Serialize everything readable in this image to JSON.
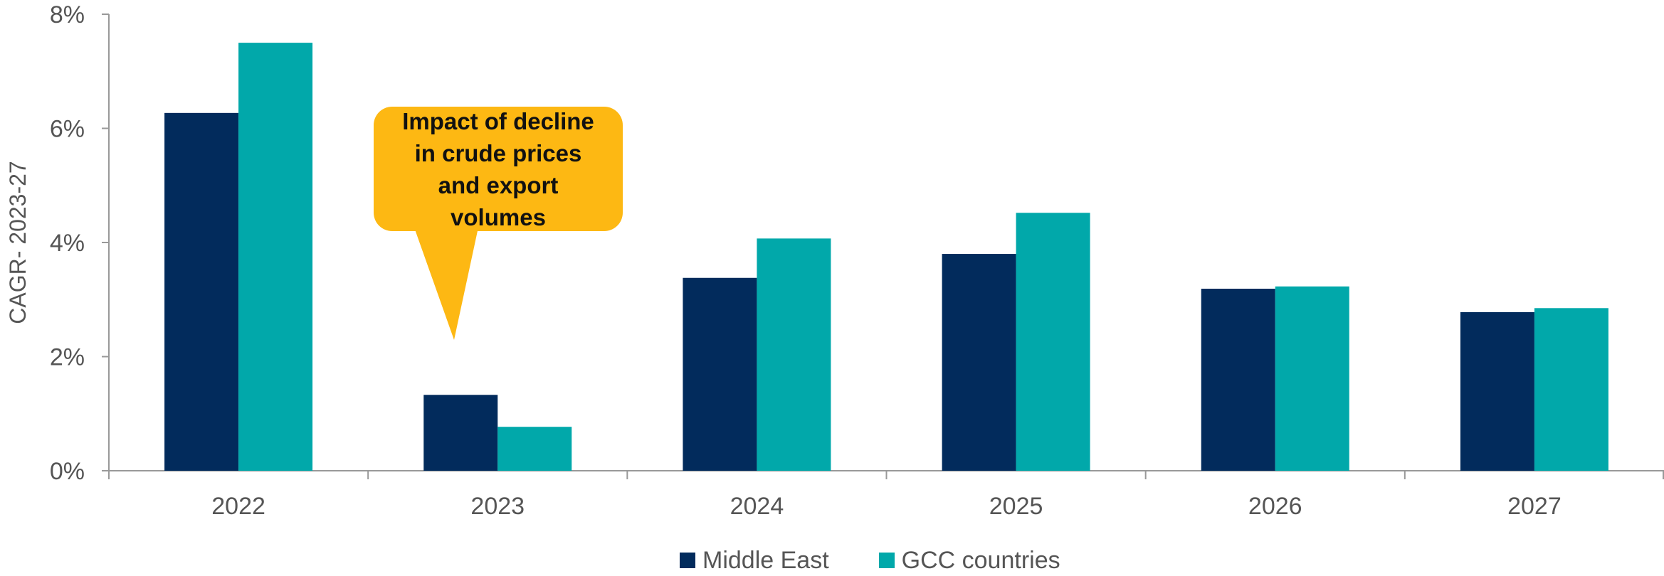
{
  "chart_data": {
    "type": "bar",
    "categories": [
      "2022",
      "2023",
      "2024",
      "2025",
      "2026",
      "2027"
    ],
    "series": [
      {
        "name": "Middle East",
        "color": "#022B5C",
        "values": [
          6.27,
          1.33,
          3.38,
          3.8,
          3.19,
          2.78
        ]
      },
      {
        "name": "GCC countries",
        "color": "#01A8AA",
        "values": [
          7.5,
          0.77,
          4.07,
          4.52,
          3.23,
          2.85
        ]
      }
    ],
    "ylabel": "CAGR- 2023-27",
    "ylim": [
      0,
      8
    ],
    "yticks": [
      {
        "value": 0,
        "label": "0%"
      },
      {
        "value": 2,
        "label": "2%"
      },
      {
        "value": 4,
        "label": "4%"
      },
      {
        "value": 6,
        "label": "6%"
      },
      {
        "value": 8,
        "label": "8%"
      }
    ],
    "grid": false,
    "legend_position": "bottom-center",
    "annotation": {
      "text": "Impact of decline in crude prices and export volumes",
      "color": "#FDB813",
      "points_to": "2023"
    }
  }
}
